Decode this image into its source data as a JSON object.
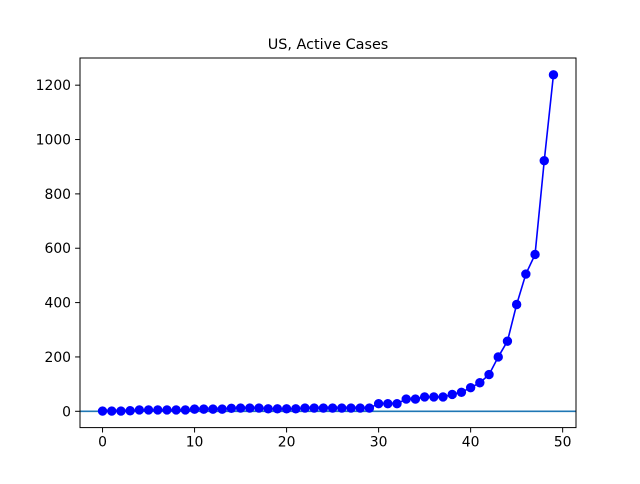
{
  "chart_data": {
    "type": "line",
    "title": "US, Active Cases",
    "xlabel": "",
    "ylabel": "",
    "xlim": [
      -2.45,
      51.45
    ],
    "ylim": [
      -60,
      1300
    ],
    "xticks": [
      0,
      10,
      20,
      30,
      40,
      50
    ],
    "yticks": [
      0,
      200,
      400,
      600,
      800,
      1000,
      1200
    ],
    "grid": false,
    "legend": "none",
    "reference_lines": [
      {
        "orientation": "horizontal",
        "y": 0,
        "color": "#1f77b4"
      }
    ],
    "series": [
      {
        "color": "#0000ff",
        "marker": "circle",
        "x": [
          0,
          1,
          2,
          3,
          4,
          5,
          6,
          7,
          8,
          9,
          10,
          11,
          12,
          13,
          14,
          15,
          16,
          17,
          18,
          19,
          20,
          21,
          22,
          23,
          24,
          25,
          26,
          27,
          28,
          29,
          30,
          31,
          32,
          33,
          34,
          35,
          36,
          37,
          38,
          39,
          40,
          41,
          42,
          43,
          44,
          45,
          46,
          47,
          48,
          49
        ],
        "y": [
          1,
          1,
          1,
          2,
          5,
          5,
          5,
          5,
          5,
          5,
          8,
          8,
          8,
          8,
          11,
          12,
          12,
          12,
          9,
          9,
          9,
          9,
          12,
          12,
          12,
          12,
          12,
          12,
          12,
          12,
          28,
          28,
          28,
          45,
          45,
          53,
          53,
          53,
          62,
          70,
          87,
          105,
          135,
          200,
          258,
          393,
          505,
          577,
          922,
          1238
        ]
      }
    ]
  }
}
